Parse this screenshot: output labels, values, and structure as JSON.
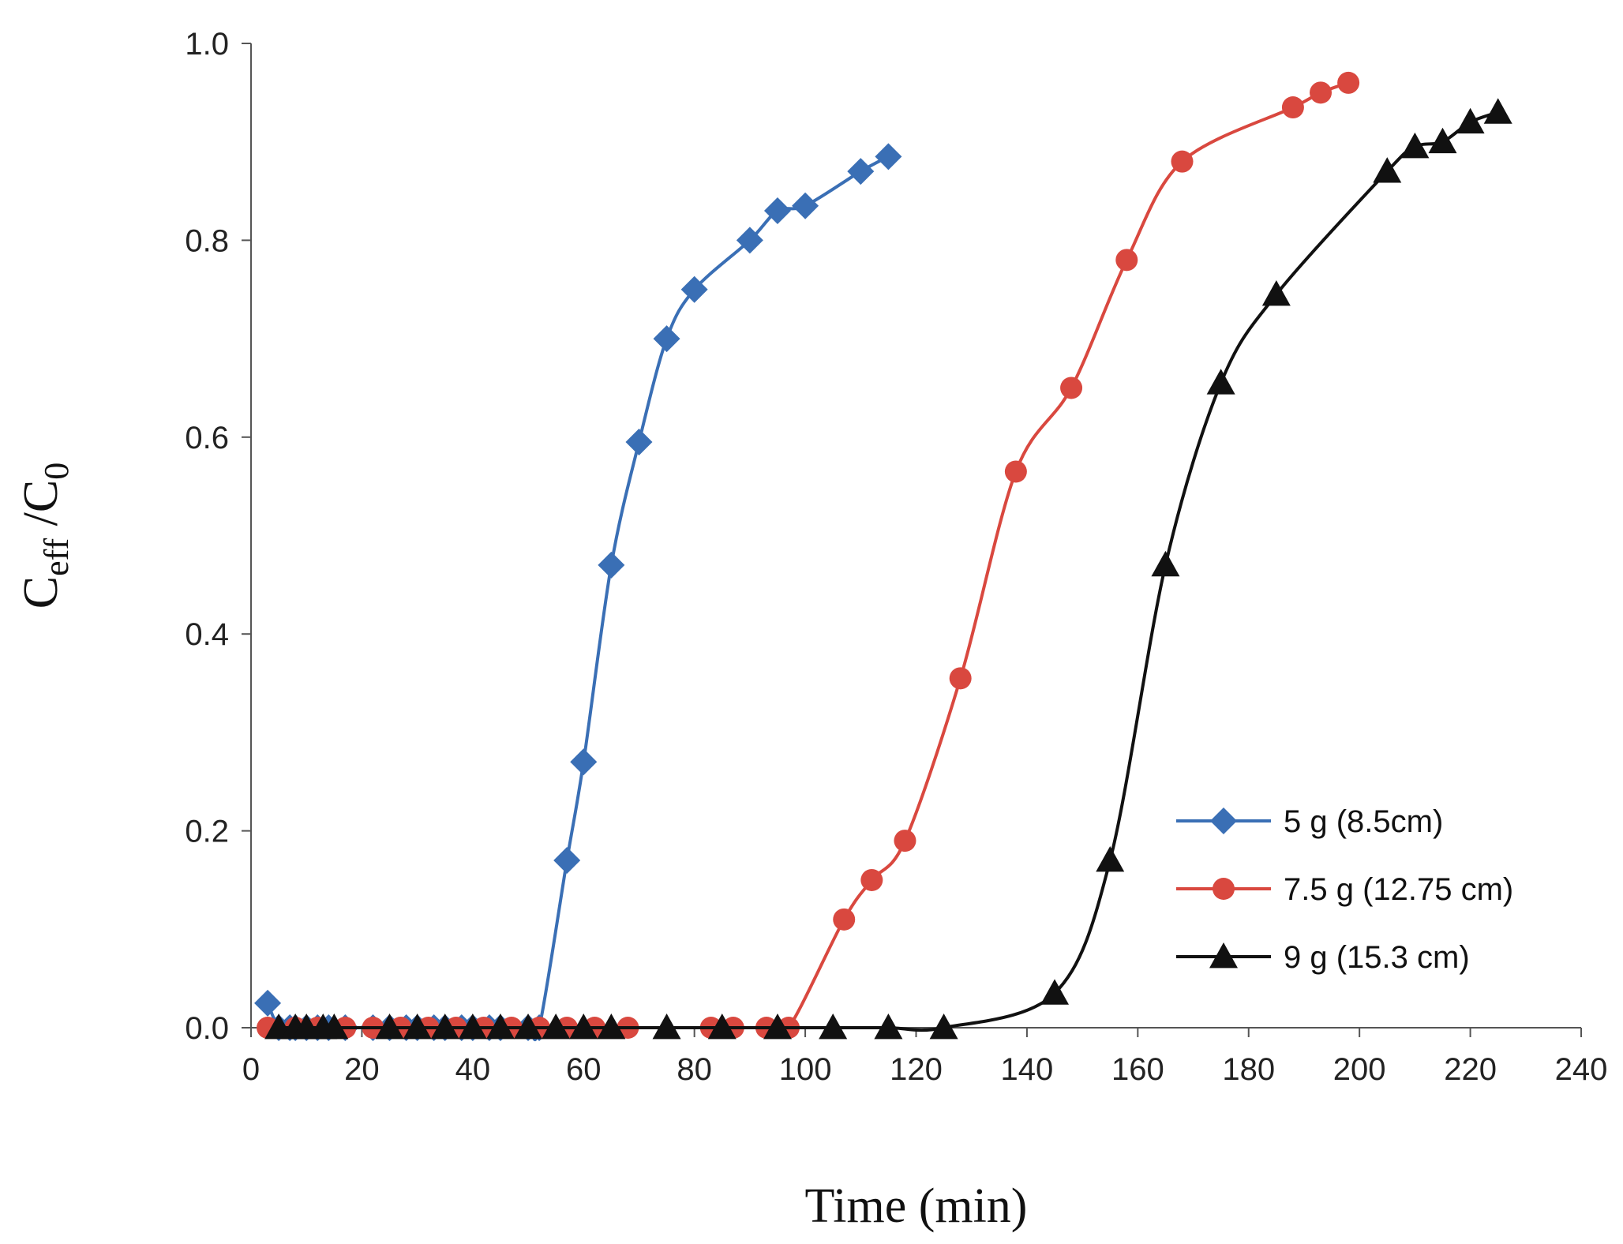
{
  "chart_data": {
    "type": "line",
    "title": "",
    "xlabel": "Time (min)",
    "ylabel": {
      "main": "C",
      "sub1": "eff",
      "sep": " /C",
      "sub2": "0"
    },
    "xlim": [
      0,
      240
    ],
    "ylim": [
      0,
      1.0
    ],
    "xticks": [
      0,
      20,
      40,
      60,
      80,
      100,
      120,
      140,
      160,
      180,
      200,
      220,
      240
    ],
    "yticks": [
      "0.0",
      "0.2",
      "0.4",
      "0.6",
      "0.8",
      "1.0"
    ],
    "legend_position": "bottom-right",
    "series": [
      {
        "name": "5 g (8.5cm)",
        "color": "#3a6fb5",
        "marker": "diamond",
        "x": [
          3,
          5,
          7,
          8,
          10,
          12,
          14,
          17,
          22,
          25,
          28,
          30,
          33,
          35,
          38,
          40,
          43,
          45,
          50,
          52,
          57,
          60,
          65,
          70,
          75,
          80,
          90,
          95,
          100,
          110,
          115
        ],
        "y": [
          0.025,
          0,
          0,
          0,
          0,
          0,
          0,
          0,
          0,
          0,
          0,
          0,
          0,
          0,
          0,
          0,
          0,
          0,
          0,
          0,
          0.17,
          0.27,
          0.47,
          0.595,
          0.7,
          0.75,
          0.8,
          0.83,
          0.835,
          0.87,
          0.885
        ]
      },
      {
        "name": "7.5 g (12.75 cm)",
        "color": "#d9483f",
        "marker": "circle",
        "x": [
          3,
          8,
          12,
          17,
          22,
          27,
          32,
          37,
          42,
          47,
          52,
          57,
          62,
          68,
          83,
          87,
          93,
          97,
          107,
          112,
          118,
          128,
          138,
          148,
          158,
          168,
          188,
          193,
          198
        ],
        "y": [
          0,
          0,
          0,
          0,
          0,
          0,
          0,
          0,
          0,
          0,
          0,
          0,
          0,
          0,
          0,
          0,
          0,
          0,
          0.11,
          0.15,
          0.19,
          0.355,
          0.565,
          0.65,
          0.78,
          0.88,
          0.935,
          0.95,
          0.96
        ]
      },
      {
        "name": "9 g (15.3 cm)",
        "color": "#111111",
        "marker": "triangle",
        "x": [
          5,
          8,
          10,
          13,
          15,
          25,
          30,
          35,
          40,
          45,
          50,
          55,
          60,
          65,
          75,
          85,
          95,
          105,
          115,
          125,
          145,
          155,
          165,
          175,
          185,
          205,
          210,
          215,
          220,
          225
        ],
        "y": [
          0,
          0,
          0,
          0,
          0,
          0,
          0,
          0,
          0,
          0,
          0,
          0,
          0,
          0,
          0,
          0,
          0,
          0,
          0,
          0,
          0.035,
          0.17,
          0.47,
          0.655,
          0.745,
          0.87,
          0.895,
          0.9,
          0.92,
          0.93
        ]
      }
    ]
  }
}
